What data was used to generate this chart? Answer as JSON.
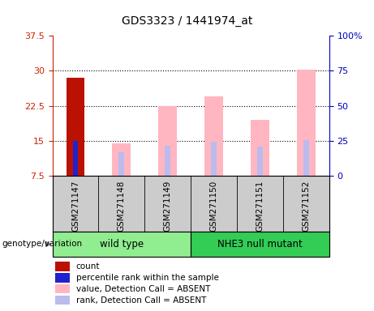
{
  "title": "GDS3323 / 1441974_at",
  "samples": [
    "GSM271147",
    "GSM271148",
    "GSM271149",
    "GSM271150",
    "GSM271151",
    "GSM271152"
  ],
  "groups": [
    {
      "name": "wild type",
      "color": "#90EE90",
      "samples": [
        0,
        1,
        2
      ]
    },
    {
      "name": "NHE3 null mutant",
      "color": "#33CC55",
      "samples": [
        3,
        4,
        5
      ]
    }
  ],
  "left_ylim": [
    7.5,
    37.5
  ],
  "left_yticks": [
    7.5,
    15.0,
    22.5,
    30.0,
    37.5
  ],
  "left_yticklabels": [
    "7.5",
    "15",
    "22.5",
    "30",
    "37.5"
  ],
  "right_yticks": [
    0,
    25,
    50,
    75,
    100
  ],
  "right_yticklabels": [
    "0",
    "25",
    "50",
    "75",
    "100%"
  ],
  "left_color": "#CC2200",
  "right_color": "#0000BB",
  "bar_bottom": 7.5,
  "count_bar": {
    "sample_idx": 0,
    "value": 28.5,
    "color": "#BB1100"
  },
  "rank_bar": {
    "sample_idx": 0,
    "value": 15.0,
    "color": "#2222CC"
  },
  "absent_value_bars": [
    {
      "sample_idx": 1,
      "value": 14.5
    },
    {
      "sample_idx": 2,
      "value": 22.5
    },
    {
      "sample_idx": 3,
      "value": 24.5
    },
    {
      "sample_idx": 4,
      "value": 19.5
    },
    {
      "sample_idx": 5,
      "value": 30.2
    }
  ],
  "absent_rank_bars": [
    {
      "sample_idx": 1,
      "value": 12.5
    },
    {
      "sample_idx": 2,
      "value": 14.0
    },
    {
      "sample_idx": 3,
      "value": 14.8
    },
    {
      "sample_idx": 4,
      "value": 13.8
    },
    {
      "sample_idx": 5,
      "value": 15.2
    }
  ],
  "absent_value_color": "#FFB6C1",
  "absent_rank_color": "#BBBBEE",
  "bar_width": 0.4,
  "rank_bar_width": 0.12,
  "legend_items": [
    {
      "color": "#BB1100",
      "label": "count"
    },
    {
      "color": "#2222CC",
      "label": "percentile rank within the sample"
    },
    {
      "color": "#FFB6C1",
      "label": "value, Detection Call = ABSENT"
    },
    {
      "color": "#BBBBEE",
      "label": "rank, Detection Call = ABSENT"
    }
  ],
  "genotype_label": "genotype/variation",
  "hgrid_color": "#000000",
  "plot_bg": "#FFFFFF",
  "sample_bg": "#CCCCCC",
  "group1_color": "#90EE90",
  "group2_color": "#33CC55"
}
